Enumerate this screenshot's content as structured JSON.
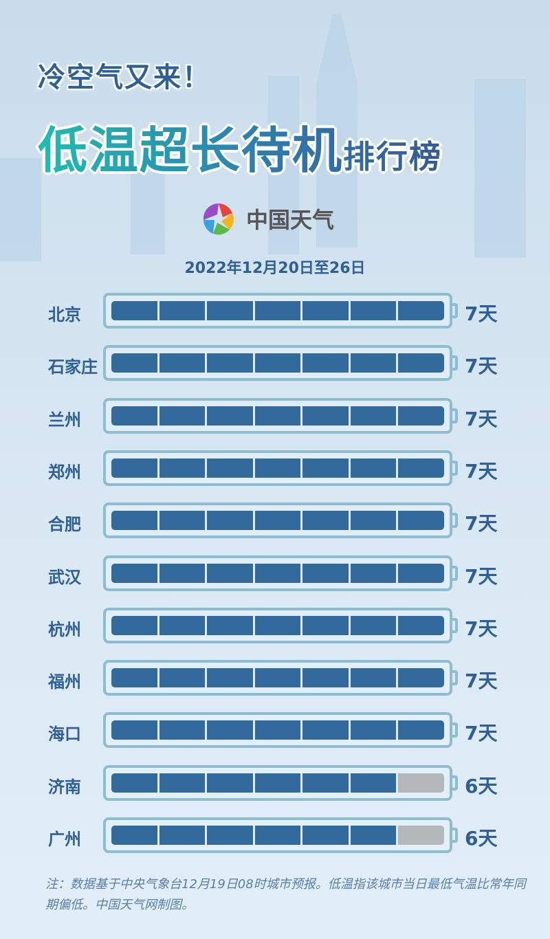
{
  "header": {
    "subtitle": "冷空气又来！",
    "title_main": "低温超长待机",
    "title_suffix": "排行榜",
    "logo_text": "中国天气"
  },
  "date_range": "2022年12月20日至26日",
  "colors": {
    "filled": "#336a9c",
    "empty": "#b4b8bb",
    "outline": "#8dbdd0",
    "text": "#2e5f95"
  },
  "chart_data": {
    "type": "bar",
    "categories": [
      "北京",
      "石家庄",
      "兰州",
      "郑州",
      "合肥",
      "武汉",
      "杭州",
      "福州",
      "海口",
      "济南",
      "广州"
    ],
    "values": [
      7,
      7,
      7,
      7,
      7,
      7,
      7,
      7,
      7,
      6,
      6
    ],
    "labels": [
      "7天",
      "7天",
      "7天",
      "7天",
      "7天",
      "7天",
      "7天",
      "7天",
      "7天",
      "6天",
      "6天"
    ],
    "ylim": [
      0,
      7
    ]
  },
  "footnote": "注：数据基于中央气象台12月19日08时城市预报。低温指该城市当日最低气温比常年同期偏低。中国天气网制图。"
}
